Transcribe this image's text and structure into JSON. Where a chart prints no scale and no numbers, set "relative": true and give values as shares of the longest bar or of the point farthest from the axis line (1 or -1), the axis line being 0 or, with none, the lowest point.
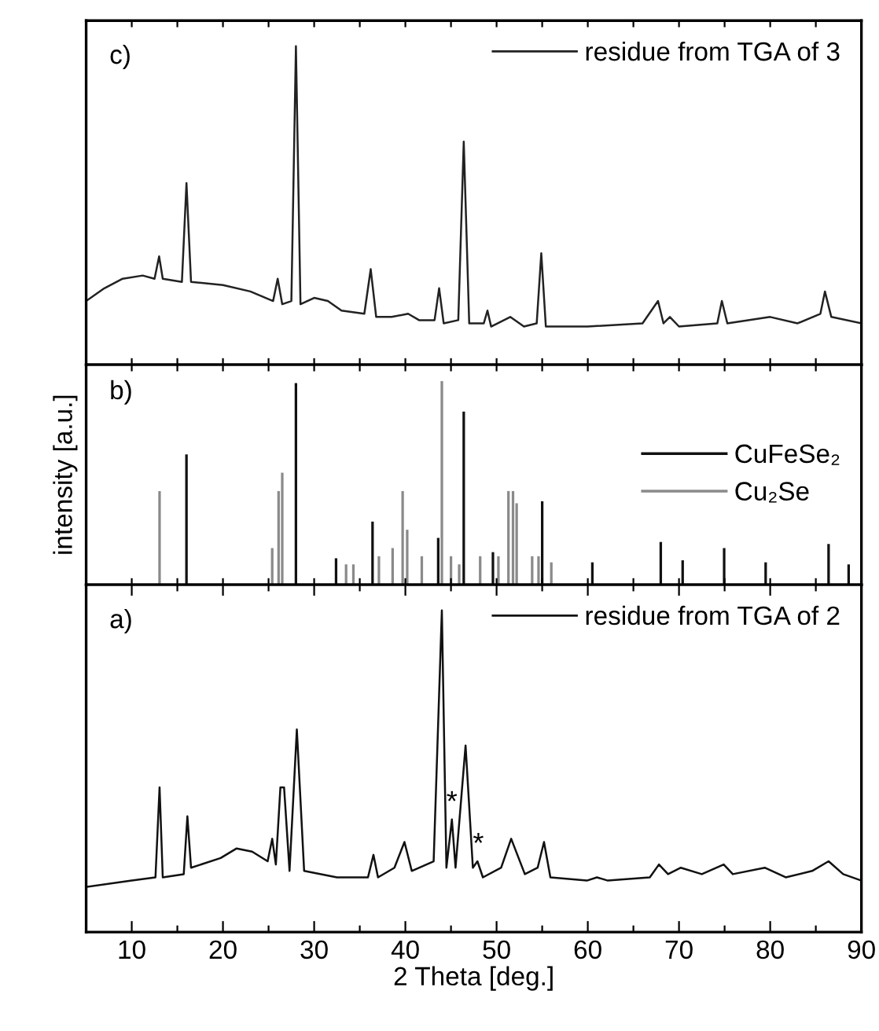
{
  "chart_data": [
    {
      "type": "line",
      "relative": true,
      "xlim": [
        5,
        90
      ],
      "xticks": [
        {
          "value": 10,
          "label": null
        },
        {
          "value": 15,
          "label": null
        },
        {
          "value": 20,
          "label": null
        },
        {
          "value": 25,
          "label": null
        },
        {
          "value": 30,
          "label": null
        },
        {
          "value": 35,
          "label": null
        },
        {
          "value": 40,
          "label": null
        },
        {
          "value": 45,
          "label": null
        },
        {
          "value": 50,
          "label": null
        },
        {
          "value": 55,
          "label": null
        },
        {
          "value": 60,
          "label": null
        },
        {
          "value": 65,
          "label": null
        },
        {
          "value": 70,
          "label": null
        },
        {
          "value": 75,
          "label": null
        },
        {
          "value": 80,
          "label": null
        },
        {
          "value": 85,
          "label": null
        },
        {
          "value": 90,
          "label": null
        }
      ],
      "tick_labels": false,
      "legend": "top right",
      "annotations": [
        "c)"
      ],
      "series": [
        {
          "name": "residue from TGA of 3",
          "color": "#222222",
          "x": [
            5.0,
            7,
            9,
            11.2,
            12.5,
            13.0,
            13.4,
            15.5,
            16.0,
            16.5,
            20,
            23,
            25.5,
            26.0,
            26.5,
            27.5,
            28.0,
            28.5,
            30,
            31.5,
            33,
            35.5,
            36.2,
            36.8,
            38.5,
            40.3,
            41.5,
            43.2,
            43.7,
            44.2,
            45.8,
            46.4,
            47.0,
            48.6,
            49.0,
            49.4,
            51.5,
            53,
            54.4,
            54.9,
            55.4,
            60,
            66,
            67.7,
            68.3,
            69.0,
            70,
            74.2,
            74.7,
            75.3,
            80,
            83,
            85.5,
            86.0,
            86.7,
            90
          ],
          "values": [
            0.2,
            0.24,
            0.27,
            0.28,
            0.27,
            0.34,
            0.27,
            0.26,
            0.57,
            0.26,
            0.25,
            0.23,
            0.2,
            0.27,
            0.19,
            0.2,
            1.0,
            0.19,
            0.21,
            0.2,
            0.17,
            0.16,
            0.3,
            0.15,
            0.15,
            0.16,
            0.14,
            0.14,
            0.24,
            0.13,
            0.14,
            0.7,
            0.13,
            0.13,
            0.17,
            0.12,
            0.15,
            0.12,
            0.13,
            0.35,
            0.12,
            0.12,
            0.13,
            0.2,
            0.13,
            0.15,
            0.12,
            0.13,
            0.2,
            0.13,
            0.15,
            0.13,
            0.16,
            0.23,
            0.15,
            0.13
          ]
        }
      ]
    },
    {
      "type": "bar",
      "relative": true,
      "xlim": [
        5,
        90
      ],
      "xticks": [
        {
          "value": 10,
          "label": null
        },
        {
          "value": 15,
          "label": null
        },
        {
          "value": 20,
          "label": null
        },
        {
          "value": 25,
          "label": null
        },
        {
          "value": 30,
          "label": null
        },
        {
          "value": 35,
          "label": null
        },
        {
          "value": 40,
          "label": null
        },
        {
          "value": 45,
          "label": null
        },
        {
          "value": 50,
          "label": null
        },
        {
          "value": 55,
          "label": null
        },
        {
          "value": 60,
          "label": null
        },
        {
          "value": 65,
          "label": null
        },
        {
          "value": 70,
          "label": null
        },
        {
          "value": 75,
          "label": null
        },
        {
          "value": 80,
          "label": null
        },
        {
          "value": 85,
          "label": null
        },
        {
          "value": 90,
          "label": null
        }
      ],
      "tick_labels": false,
      "legend": "right",
      "ylabel": "intensity [a.u.]",
      "annotations": [
        "b)"
      ],
      "series": [
        {
          "name": "CuFeSe₂",
          "color": "#111111",
          "x": [
            16.0,
            28.0,
            32.4,
            36.4,
            43.6,
            46.4,
            49.6,
            55.0,
            60.5,
            68.0,
            70.4,
            74.95,
            79.5,
            86.4,
            88.6
          ],
          "values": [
            0.64,
            0.99,
            0.13,
            0.31,
            0.23,
            0.85,
            0.16,
            0.41,
            0.11,
            0.21,
            0.12,
            0.18,
            0.11,
            0.2,
            0.1
          ]
        },
        {
          "name": "Cu₂Se",
          "color": "#8a8a8a",
          "x": [
            13.05,
            25.4,
            26.1,
            26.5,
            33.5,
            34.3,
            37.1,
            38.6,
            39.7,
            40.2,
            41.8,
            44.0,
            45.0,
            45.9,
            48.2,
            50.2,
            51.3,
            51.8,
            52.2,
            53.9,
            54.6,
            56.0
          ],
          "values": [
            0.46,
            0.18,
            0.46,
            0.55,
            0.1,
            0.1,
            0.14,
            0.18,
            0.46,
            0.27,
            0.14,
            1.0,
            0.14,
            0.1,
            0.14,
            0.14,
            0.46,
            0.46,
            0.4,
            0.14,
            0.14,
            0.11
          ]
        }
      ]
    },
    {
      "type": "line",
      "relative": true,
      "xlim": [
        5,
        90
      ],
      "xticks": [
        10,
        {
          "value": 15,
          "label": null
        },
        20,
        {
          "value": 25,
          "label": null
        },
        30,
        {
          "value": 35,
          "label": null
        },
        40,
        {
          "value": 45,
          "label": null
        },
        50,
        {
          "value": 55,
          "label": null
        },
        60,
        {
          "value": 65,
          "label": null
        },
        70,
        {
          "value": 75,
          "label": null
        },
        80,
        {
          "value": 85,
          "label": null
        },
        90
      ],
      "tick_labels": "x",
      "xlabel": "2 Theta [deg.]",
      "legend": "top right",
      "annotations": [
        "a)",
        {
          "text": "*",
          "x": 45.1,
          "y": 0.4
        },
        {
          "text": "*",
          "x": 48.0,
          "y": 0.27
        }
      ],
      "series": [
        {
          "name": "residue from TGA of 2",
          "color": "#111111",
          "x": [
            5.0,
            10,
            12.6,
            13.05,
            13.4,
            15.7,
            16.1,
            16.5,
            19.75,
            21.5,
            23.2,
            24.9,
            25.4,
            25.8,
            26.3,
            26.7,
            27.3,
            28.1,
            28.9,
            32.5,
            35.9,
            36.5,
            37.0,
            38.8,
            39.9,
            40.7,
            43.1,
            44.0,
            44.5,
            45.1,
            45.5,
            46.6,
            47.4,
            47.9,
            48.5,
            50.5,
            51.6,
            53.1,
            54.5,
            55.2,
            55.9,
            59.9,
            61.0,
            62.2,
            66.8,
            67.8,
            68.8,
            70.2,
            72.5,
            74.9,
            75.9,
            79.4,
            81.7,
            84.6,
            86.4,
            88.0,
            90
          ],
          "values": [
            0.14,
            0.16,
            0.17,
            0.45,
            0.17,
            0.18,
            0.36,
            0.2,
            0.23,
            0.26,
            0.25,
            0.22,
            0.29,
            0.21,
            0.45,
            0.45,
            0.19,
            0.63,
            0.19,
            0.17,
            0.17,
            0.24,
            0.17,
            0.2,
            0.28,
            0.19,
            0.22,
            1.0,
            0.2,
            0.35,
            0.2,
            0.58,
            0.2,
            0.22,
            0.17,
            0.2,
            0.29,
            0.18,
            0.2,
            0.28,
            0.17,
            0.16,
            0.17,
            0.16,
            0.17,
            0.21,
            0.18,
            0.2,
            0.18,
            0.21,
            0.18,
            0.2,
            0.17,
            0.19,
            0.22,
            0.18,
            0.16
          ]
        }
      ]
    }
  ]
}
